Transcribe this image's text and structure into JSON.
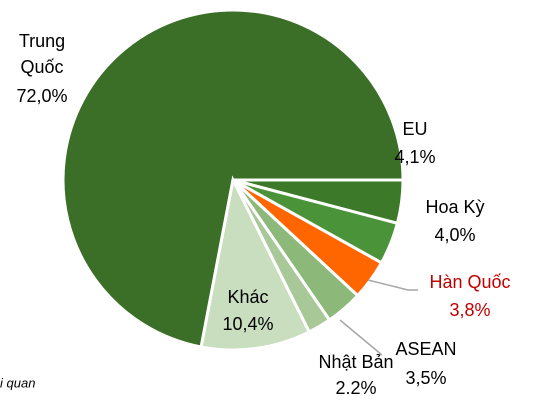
{
  "chart_data": {
    "type": "pie",
    "categories": [
      "Trung Quốc",
      "EU",
      "Hoa Kỳ",
      "Hàn Quốc",
      "ASEAN",
      "Nhật Bản",
      "Khác"
    ],
    "values": [
      72.0,
      4.1,
      4.0,
      3.8,
      3.5,
      2.2,
      10.4
    ],
    "value_labels": [
      "72,0%",
      "4,1%",
      "4,0%",
      "3,8%",
      "3,5%",
      "2.2%",
      "10,4%"
    ],
    "colors": [
      "#3b6e26",
      "#3c7a2a",
      "#4a9338",
      "#ff6600",
      "#8cb879",
      "#a8c898",
      "#c9ddbf"
    ],
    "label_colors": [
      "#000000",
      "#000000",
      "#000000",
      "#c00000",
      "#000000",
      "#000000",
      "#000000"
    ],
    "note": "i quan"
  }
}
